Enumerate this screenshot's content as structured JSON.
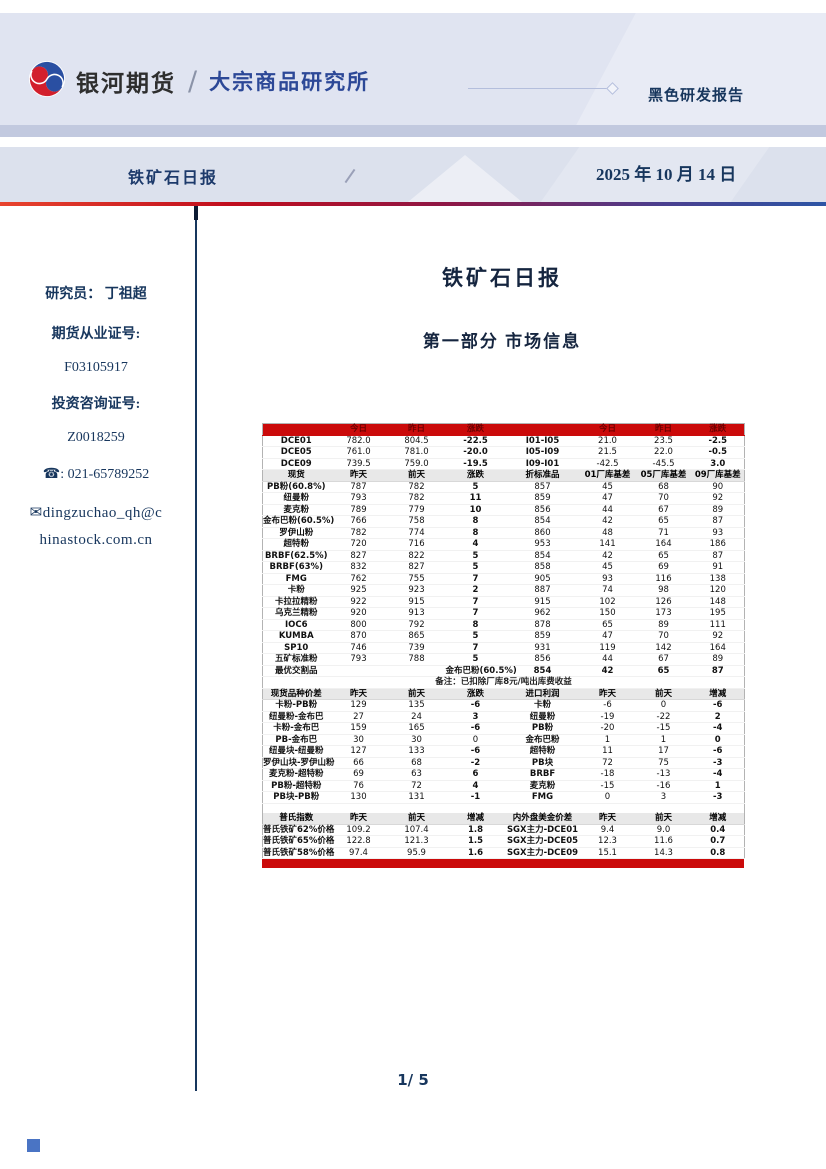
{
  "brand": {
    "company": "银河期货",
    "slash": "/",
    "department": "大宗商品研究所",
    "report_tag": "黑色研发报告"
  },
  "banner": {
    "title": "铁矿石日报",
    "date": "2025 年 10 月 14 日"
  },
  "sidebar": {
    "researcher_label": "研究员：",
    "researcher_name": "丁祖超",
    "cert1_label": "期货从业证号:",
    "cert1_value": "F03105917",
    "cert2_label": "投资咨询证号:",
    "cert2_value": "Z0018259",
    "phone_icon": "☎",
    "phone": ": 021-65789252",
    "email_icon": "✉",
    "email_line1": "dingzuchao_qh@c",
    "email_line2": "hinastock.com.cn"
  },
  "content": {
    "title": "铁矿石日报",
    "section_heading": "第一部分  市场信息"
  },
  "footer": {
    "page_number": "1/ 5"
  },
  "colors": {
    "header_lavender": "#e0e4f1",
    "banner_gray_blue": "#dce1ed",
    "table_red": "#cb0a0a",
    "label_blue": "#2e74b5",
    "up_red": "#fe0000",
    "down_green": "#00b050",
    "navy": "#17365d"
  },
  "table": {
    "rows": [
      {
        "t": "rh",
        "c": [
          "",
          "今日",
          "昨日",
          "涨跌",
          "",
          "今日",
          "昨日",
          "涨跌"
        ]
      },
      {
        "c": [
          "DCE01",
          "782.0",
          "804.5",
          "-22.5",
          "I01-I05",
          "21.0",
          "23.5",
          "-2.5"
        ],
        "s": [
          "l",
          "n",
          "n",
          "d",
          "l",
          "n",
          "n",
          "d"
        ]
      },
      {
        "c": [
          "DCE05",
          "761.0",
          "781.0",
          "-20.0",
          "I05-I09",
          "21.5",
          "22.0",
          "-0.5"
        ],
        "s": [
          "l",
          "n",
          "n",
          "d",
          "l",
          "n",
          "n",
          "d"
        ]
      },
      {
        "c": [
          "DCE09",
          "739.5",
          "759.0",
          "-19.5",
          "I09-I01",
          "-42.5",
          "-45.5",
          "3.0"
        ],
        "s": [
          "l",
          "n",
          "n",
          "d",
          "l",
          "n",
          "n",
          "u"
        ]
      },
      {
        "t": "h",
        "c": [
          "现货",
          "昨天",
          "前天",
          "涨跌",
          "折标准品",
          "01厂库基差",
          "05厂库基差",
          "09厂库基差"
        ]
      },
      {
        "c": [
          "PB粉(60.8%)",
          "787",
          "782",
          "5",
          "857",
          "45",
          "68",
          "90"
        ],
        "s": [
          "l",
          "n",
          "n",
          "u",
          "n",
          "n",
          "n",
          "n"
        ]
      },
      {
        "c": [
          "纽曼粉",
          "793",
          "782",
          "11",
          "859",
          "47",
          "70",
          "92"
        ],
        "s": [
          "l",
          "n",
          "n",
          "u",
          "n",
          "n",
          "n",
          "n"
        ]
      },
      {
        "c": [
          "麦克粉",
          "789",
          "779",
          "10",
          "856",
          "44",
          "67",
          "89"
        ],
        "s": [
          "l",
          "n",
          "n",
          "u",
          "n",
          "n",
          "n",
          "n"
        ]
      },
      {
        "c": [
          "金布巴粉(60.5%)",
          "766",
          "758",
          "8",
          "854",
          "42",
          "65",
          "87"
        ],
        "s": [
          "l",
          "n",
          "n",
          "u",
          "n",
          "n",
          "n",
          "n"
        ]
      },
      {
        "c": [
          "罗伊山粉",
          "782",
          "774",
          "8",
          "860",
          "48",
          "71",
          "93"
        ],
        "s": [
          "l",
          "n",
          "n",
          "u",
          "n",
          "n",
          "n",
          "n"
        ]
      },
      {
        "c": [
          "超特粉",
          "720",
          "716",
          "4",
          "953",
          "141",
          "164",
          "186"
        ],
        "s": [
          "l",
          "n",
          "n",
          "u",
          "n",
          "n",
          "n",
          "n"
        ]
      },
      {
        "c": [
          "BRBF(62.5%)",
          "827",
          "822",
          "5",
          "854",
          "42",
          "65",
          "87"
        ],
        "s": [
          "l",
          "n",
          "n",
          "u",
          "n",
          "n",
          "n",
          "n"
        ]
      },
      {
        "c": [
          "BRBF(63%)",
          "832",
          "827",
          "5",
          "858",
          "45",
          "69",
          "91"
        ],
        "s": [
          "l",
          "n",
          "n",
          "u",
          "n",
          "n",
          "n",
          "n"
        ]
      },
      {
        "c": [
          "FMG",
          "762",
          "755",
          "7",
          "905",
          "93",
          "116",
          "138"
        ],
        "s": [
          "l",
          "n",
          "n",
          "u",
          "n",
          "n",
          "n",
          "n"
        ]
      },
      {
        "c": [
          "卡粉",
          "925",
          "923",
          "2",
          "887",
          "74",
          "98",
          "120"
        ],
        "s": [
          "l",
          "n",
          "n",
          "u",
          "n",
          "n",
          "n",
          "n"
        ]
      },
      {
        "c": [
          "卡拉拉精粉",
          "922",
          "915",
          "7",
          "915",
          "102",
          "126",
          "148"
        ],
        "s": [
          "l",
          "n",
          "n",
          "u",
          "n",
          "n",
          "n",
          "n"
        ]
      },
      {
        "c": [
          "乌克兰精粉",
          "920",
          "913",
          "7",
          "962",
          "150",
          "173",
          "195"
        ],
        "s": [
          "l",
          "n",
          "n",
          "u",
          "n",
          "n",
          "n",
          "n"
        ]
      },
      {
        "c": [
          "IOC6",
          "800",
          "792",
          "8",
          "878",
          "65",
          "89",
          "111"
        ],
        "s": [
          "l",
          "n",
          "n",
          "u",
          "n",
          "n",
          "n",
          "n"
        ]
      },
      {
        "c": [
          "KUMBA",
          "870",
          "865",
          "5",
          "859",
          "47",
          "70",
          "92"
        ],
        "s": [
          "l",
          "n",
          "n",
          "u",
          "n",
          "n",
          "n",
          "n"
        ]
      },
      {
        "c": [
          "SP10",
          "746",
          "739",
          "7",
          "931",
          "119",
          "142",
          "164"
        ],
        "s": [
          "l",
          "n",
          "n",
          "u",
          "n",
          "n",
          "n",
          "n"
        ]
      },
      {
        "c": [
          "五矿标准粉",
          "793",
          "788",
          "5",
          "856",
          "44",
          "67",
          "89"
        ],
        "s": [
          "l",
          "n",
          "n",
          "u",
          "n",
          "n",
          "n",
          "n"
        ]
      },
      {
        "c": [
          "最优交割品",
          "",
          "",
          "金布巴粉(60.5%)",
          "854",
          "42",
          "65",
          "87"
        ],
        "s": [
          "rb",
          "n",
          "n",
          "rb",
          "rb",
          "rb",
          "rb",
          "rb"
        ]
      },
      {
        "t": "note",
        "text": "备注：已扣除厂库8元/吨出库费收益"
      },
      {
        "t": "h",
        "c": [
          "现货品种价差",
          "昨天",
          "前天",
          "涨跌",
          "进口利润",
          "昨天",
          "前天",
          "增减"
        ]
      },
      {
        "c": [
          "卡粉-PB粉",
          "129",
          "135",
          "-6",
          "卡粉",
          "-6",
          "0",
          "-6"
        ],
        "s": [
          "l",
          "n",
          "n",
          "d",
          "l",
          "n",
          "n",
          "d"
        ]
      },
      {
        "c": [
          "纽曼粉-金布巴",
          "27",
          "24",
          "3",
          "纽曼粉",
          "-19",
          "-22",
          "2"
        ],
        "s": [
          "l",
          "n",
          "n",
          "u",
          "l",
          "n",
          "n",
          "u"
        ]
      },
      {
        "c": [
          "卡粉-金布巴",
          "159",
          "165",
          "-6",
          "PB粉",
          "-20",
          "-15",
          "-4"
        ],
        "s": [
          "l",
          "n",
          "n",
          "d",
          "l",
          "n",
          "n",
          "d"
        ]
      },
      {
        "c": [
          "PB-金布巴",
          "30",
          "30",
          "0",
          "金布巴粉",
          "1",
          "1",
          "0"
        ],
        "s": [
          "l",
          "n",
          "n",
          "n",
          "l",
          "n",
          "n",
          "d"
        ]
      },
      {
        "c": [
          "纽曼块-纽曼粉",
          "127",
          "133",
          "-6",
          "超特粉",
          "11",
          "17",
          "-6"
        ],
        "s": [
          "l",
          "n",
          "n",
          "d",
          "l",
          "n",
          "n",
          "d"
        ]
      },
      {
        "c": [
          "罗伊山块-罗伊山粉",
          "66",
          "68",
          "-2",
          "PB块",
          "72",
          "75",
          "-3"
        ],
        "s": [
          "l",
          "n",
          "n",
          "d",
          "l",
          "n",
          "n",
          "d"
        ]
      },
      {
        "c": [
          "麦克粉-超特粉",
          "69",
          "63",
          "6",
          "BRBF",
          "-18",
          "-13",
          "-4"
        ],
        "s": [
          "l",
          "n",
          "n",
          "u",
          "l",
          "n",
          "n",
          "d"
        ]
      },
      {
        "c": [
          "PB粉-超特粉",
          "76",
          "72",
          "4",
          "麦克粉",
          "-15",
          "-16",
          "1"
        ],
        "s": [
          "l",
          "n",
          "n",
          "u",
          "l",
          "n",
          "n",
          "u"
        ]
      },
      {
        "c": [
          "PB块-PB粉",
          "130",
          "131",
          "-1",
          "FMG",
          "0",
          "3",
          "-3"
        ],
        "s": [
          "l",
          "n",
          "n",
          "d",
          "l",
          "n",
          "n",
          "d"
        ]
      },
      {
        "t": "gap",
        "text": ""
      },
      {
        "t": "h",
        "c": [
          "普氏指数",
          "昨天",
          "前天",
          "增减",
          "内外盘美金价差",
          "昨天",
          "前天",
          "增减"
        ]
      },
      {
        "c": [
          "普氏铁矿62%价格",
          "109.2",
          "107.4",
          "1.8",
          "SGX主力-DCE01",
          "9.4",
          "9.0",
          "0.4"
        ],
        "s": [
          "l",
          "n",
          "n",
          "u",
          "l",
          "n",
          "n",
          "u"
        ]
      },
      {
        "c": [
          "普氏铁矿65%价格",
          "122.8",
          "121.3",
          "1.5",
          "SGX主力-DCE05",
          "12.3",
          "11.6",
          "0.7"
        ],
        "s": [
          "l",
          "n",
          "n",
          "u",
          "l",
          "n",
          "n",
          "u"
        ]
      },
      {
        "c": [
          "普氏铁矿58%价格",
          "97.4",
          "95.9",
          "1.6",
          "SGX主力-DCE09",
          "15.1",
          "14.3",
          "0.8"
        ],
        "s": [
          "l",
          "n",
          "n",
          "u",
          "l",
          "n",
          "n",
          "u"
        ]
      }
    ]
  }
}
